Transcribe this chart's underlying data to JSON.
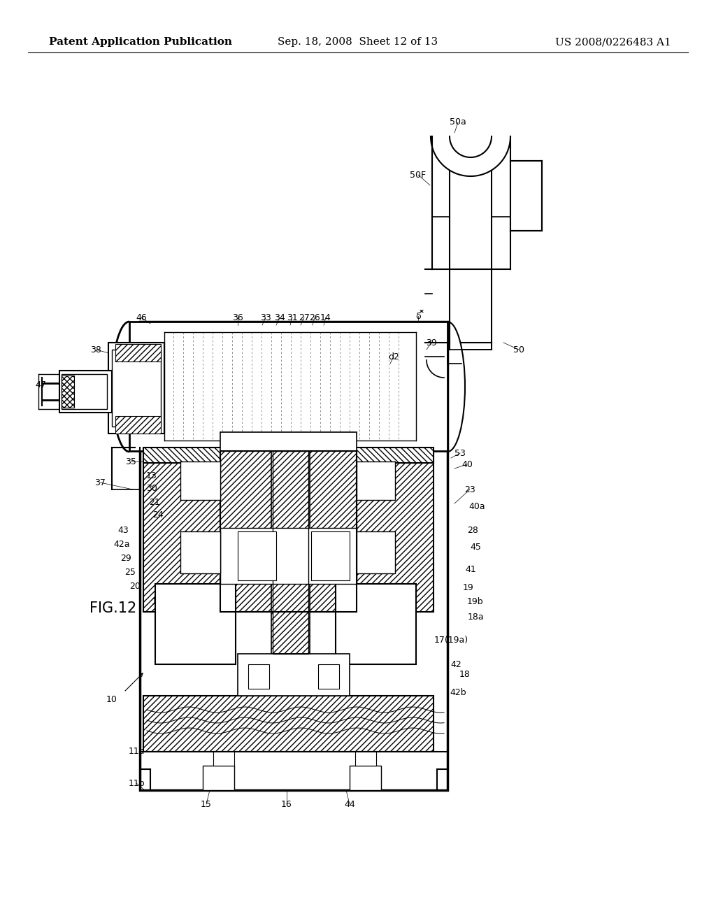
{
  "header_left": "Patent Application Publication",
  "header_center": "Sep. 18, 2008  Sheet 12 of 13",
  "header_right": "US 2008/0226483 A1",
  "fig_label": "FIG.12",
  "bg_color": "#ffffff",
  "line_color": "#000000",
  "header_fontsize": 11,
  "fig_label_fontsize": 15,
  "label_fontsize": 9
}
